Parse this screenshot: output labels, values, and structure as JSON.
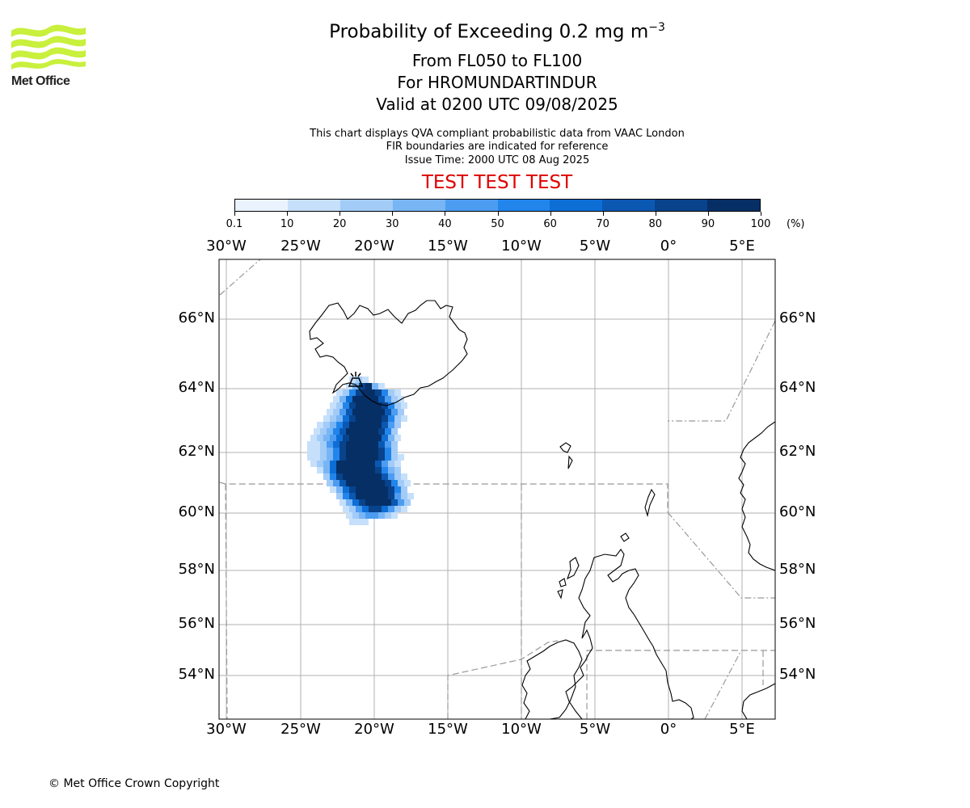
{
  "header": {
    "title_main": "Probability of Exceeding 0.2 mg m",
    "title_sup": "−3",
    "line2": "From FL050 to FL100",
    "line3": "For HROMUNDARTINDUR",
    "line4": "Valid at 0200 UTC 09/08/2025",
    "info1": "This chart displays QVA compliant probabilistic data from VAAC London",
    "info2": "FIR boundaries are indicated for reference",
    "info3": "Issue Time: 2000 UTC 08 Aug 2025",
    "test": "TEST TEST TEST"
  },
  "logo": {
    "text": "Met Office",
    "color": "#c8f03c"
  },
  "colorbar": {
    "ticks": [
      "0.1",
      "10",
      "20",
      "30",
      "40",
      "50",
      "60",
      "70",
      "80",
      "90",
      "100"
    ],
    "unit": "(%)",
    "colors": [
      "#eaf3fd",
      "#c6e0fb",
      "#a2cbf8",
      "#78b5f5",
      "#4c9cf1",
      "#2285ec",
      "#0d6ed6",
      "#0b58b2",
      "#08438c",
      "#062f66"
    ]
  },
  "map": {
    "lon_labels": [
      "30°W",
      "25°W",
      "20°W",
      "15°W",
      "10°W",
      "5°W",
      "0°",
      "5°E"
    ],
    "lat_labels": [
      "66°N",
      "64°N",
      "62°N",
      "60°N",
      "58°N",
      "56°N",
      "54°N"
    ],
    "source_marker": "volcano-marker"
  },
  "footer": {
    "copyright": "© Met Office Crown Copyright"
  }
}
